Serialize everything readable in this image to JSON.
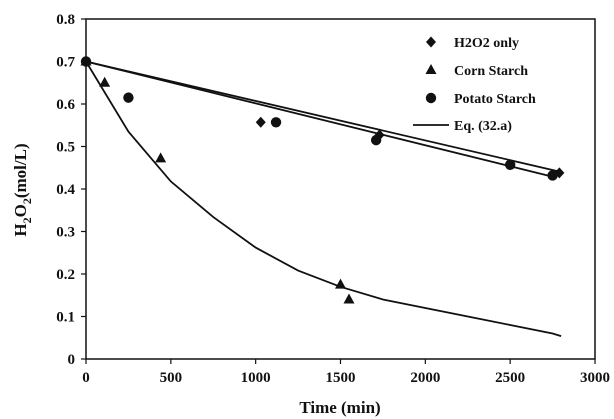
{
  "chart_data": {
    "type": "scatter",
    "title": "",
    "xlabel": "Time (min)",
    "ylabel": "H2O2(mol/L)",
    "ylabel_parts": {
      "base1": "H",
      "sub1": "2",
      "base2": "O",
      "sub2": "2",
      "rest": "(mol/L)"
    },
    "xlim": [
      0,
      3000
    ],
    "ylim": [
      0,
      0.8
    ],
    "x_ticks": [
      0,
      500,
      1000,
      1500,
      2000,
      2500,
      3000
    ],
    "y_ticks": [
      0,
      0.1,
      0.2,
      0.3,
      0.4,
      0.5,
      0.6,
      0.7,
      0.8
    ],
    "x_tick_labels": [
      "0",
      "500",
      "1000",
      "1500",
      "2000",
      "2500",
      "3000"
    ],
    "y_tick_labels": [
      "0",
      "0.1",
      "0.2",
      "0.3",
      "0.4",
      "0.5",
      "0.6",
      "0.7",
      "0.8"
    ],
    "grid": false,
    "legend_position": "top-right",
    "series": [
      {
        "name": "H2O2 only",
        "marker": "diamond",
        "points": [
          [
            0,
            0.7
          ],
          [
            1030,
            0.557
          ],
          [
            1730,
            0.527
          ],
          [
            2790,
            0.438
          ]
        ]
      },
      {
        "name": "Corn Starch",
        "marker": "triangle",
        "points": [
          [
            0,
            0.7
          ],
          [
            110,
            0.65
          ],
          [
            440,
            0.472
          ],
          [
            1500,
            0.175
          ],
          [
            1550,
            0.14
          ]
        ]
      },
      {
        "name": "Potato Starch",
        "marker": "circle",
        "points": [
          [
            0,
            0.7
          ],
          [
            250,
            0.615
          ],
          [
            1120,
            0.557
          ],
          [
            1710,
            0.515
          ],
          [
            2500,
            0.457
          ],
          [
            2750,
            0.432
          ]
        ]
      },
      {
        "name": "Eq. (32.a)",
        "marker": "line",
        "lines": [
          [
            [
              0,
              0.7
            ],
            [
              2800,
              0.44
            ]
          ],
          [
            [
              0,
              0.7
            ],
            [
              2760,
              0.428
            ]
          ],
          [
            [
              0,
              0.7
            ],
            [
              250,
              0.535
            ],
            [
              500,
              0.418
            ],
            [
              750,
              0.334
            ],
            [
              1000,
              0.262
            ],
            [
              1250,
              0.208
            ],
            [
              1500,
              0.17
            ],
            [
              1750,
              0.14
            ],
            [
              2000,
              0.12
            ],
            [
              2250,
              0.1
            ],
            [
              2500,
              0.08
            ],
            [
              2750,
              0.06
            ],
            [
              2800,
              0.054
            ]
          ]
        ]
      }
    ]
  }
}
